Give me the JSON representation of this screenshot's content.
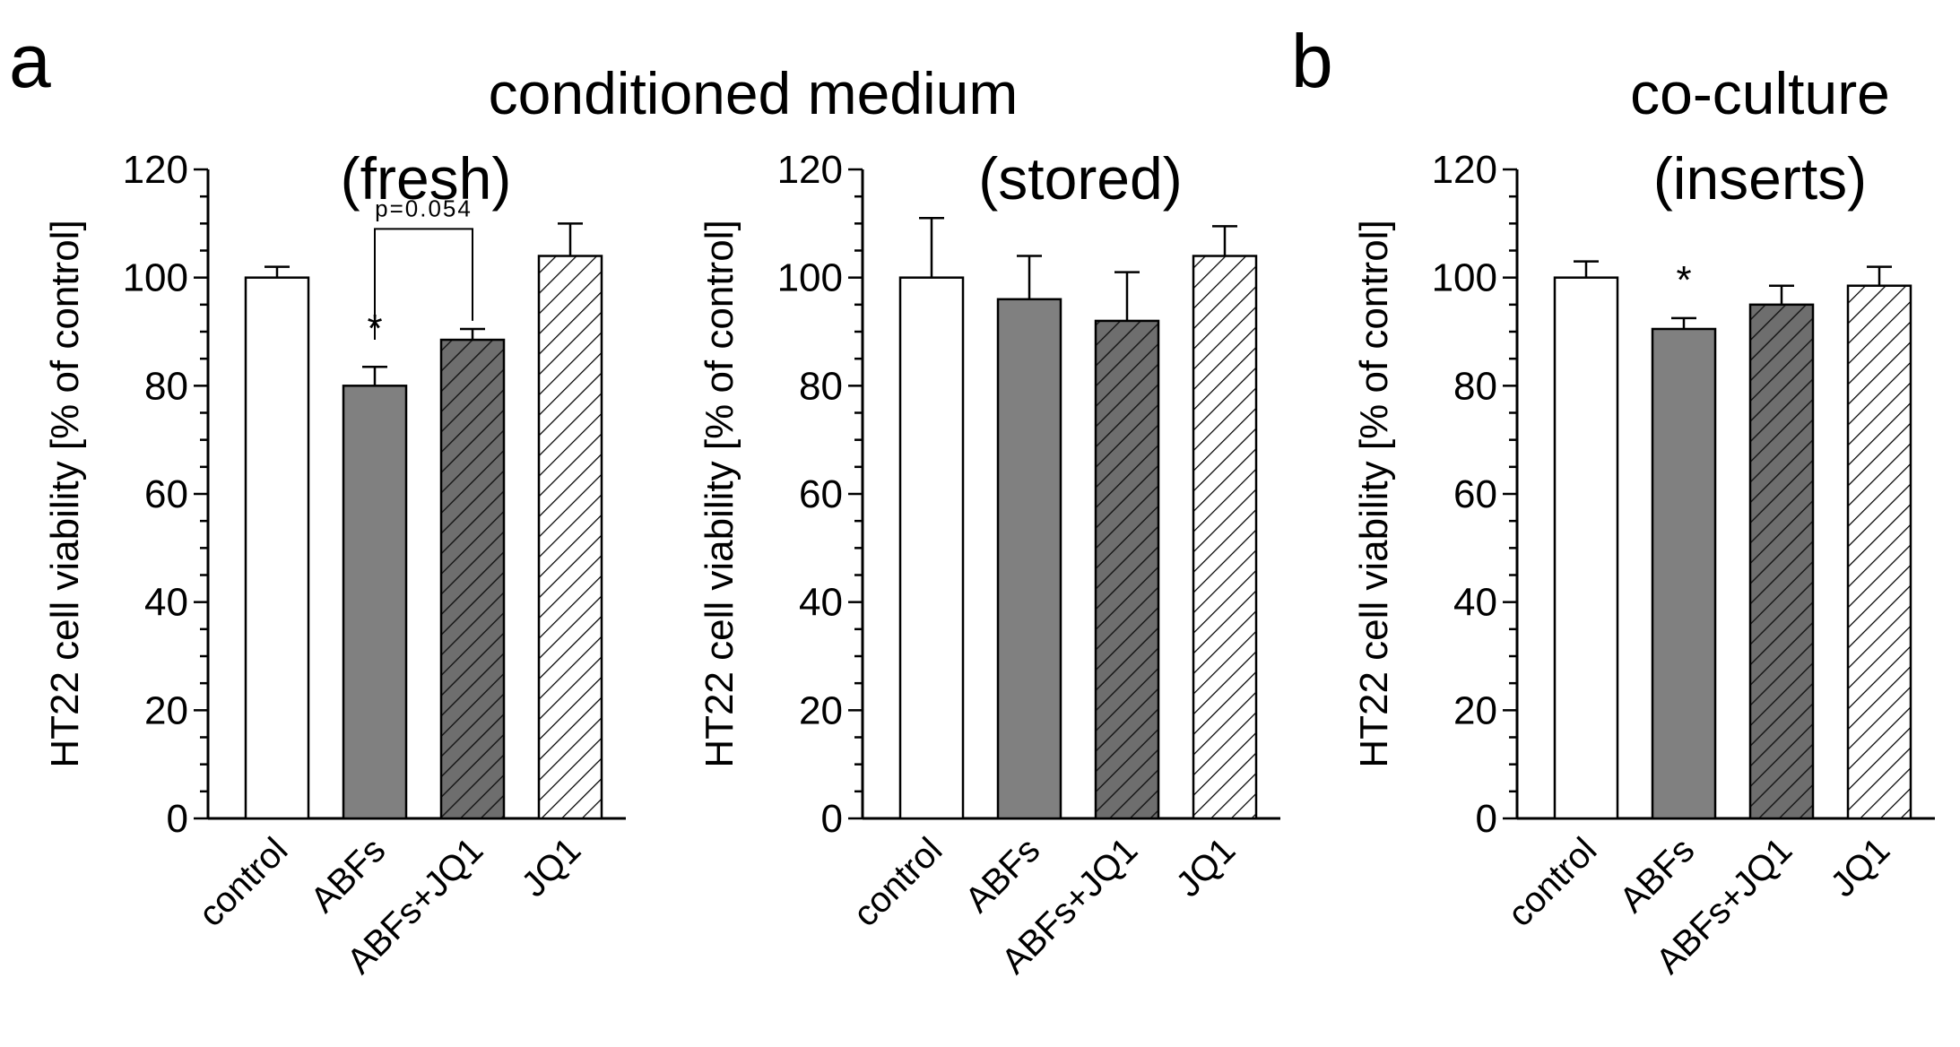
{
  "panel_letters": {
    "a": "a",
    "b": "b"
  },
  "titles": {
    "a_top": "conditioned medium",
    "a_left": "(fresh)",
    "a_right": "(stored)",
    "b_top": "co-culture",
    "b_bottom": "(inserts)"
  },
  "colors": {
    "white": "#ffffff",
    "gray": "#808080",
    "dark_gray": "#6e6e6e",
    "axis": "#000000"
  },
  "chart_data": [
    {
      "type": "bar",
      "title": "(fresh)",
      "ylabel": "HT22 cell viability [% of control]",
      "ylim": [
        0,
        120
      ],
      "yticks": [
        0,
        20,
        40,
        60,
        80,
        100,
        120
      ],
      "categories": [
        "control",
        "ABFs",
        "ABFs+JQ1",
        "JQ1"
      ],
      "values": [
        100,
        80,
        88.5,
        104
      ],
      "errors": [
        2,
        3.5,
        2,
        6
      ],
      "fills": [
        "white",
        "gray",
        "dark-hatched",
        "white-hatched"
      ],
      "annotations": [
        {
          "text": "*",
          "category": "ABFs"
        }
      ],
      "bracket": {
        "text": "p=0.054",
        "from": "ABFs",
        "to": "ABFs+JQ1"
      }
    },
    {
      "type": "bar",
      "title": "(stored)",
      "ylabel": "HT22 cell viability [% of control]",
      "ylim": [
        0,
        120
      ],
      "yticks": [
        0,
        20,
        40,
        60,
        80,
        100,
        120
      ],
      "categories": [
        "control",
        "ABFs",
        "ABFs+JQ1",
        "JQ1"
      ],
      "values": [
        100,
        96,
        92,
        104
      ],
      "errors": [
        11,
        8,
        9,
        5.5
      ],
      "fills": [
        "white",
        "gray",
        "dark-hatched",
        "white-hatched"
      ],
      "annotations": [],
      "bracket": null
    },
    {
      "type": "bar",
      "title": "co-culture (inserts)",
      "ylabel": "HT22 cell viability [% of control]",
      "ylim": [
        0,
        120
      ],
      "yticks": [
        0,
        20,
        40,
        60,
        80,
        100,
        120
      ],
      "categories": [
        "control",
        "ABFs",
        "ABFs+JQ1",
        "JQ1"
      ],
      "values": [
        100,
        90.5,
        95,
        98.5
      ],
      "errors": [
        3,
        2,
        3.5,
        3.5
      ],
      "fills": [
        "white",
        "gray",
        "dark-hatched",
        "white-hatched"
      ],
      "annotations": [
        {
          "text": "*",
          "category": "ABFs"
        }
      ],
      "bracket": null
    }
  ]
}
